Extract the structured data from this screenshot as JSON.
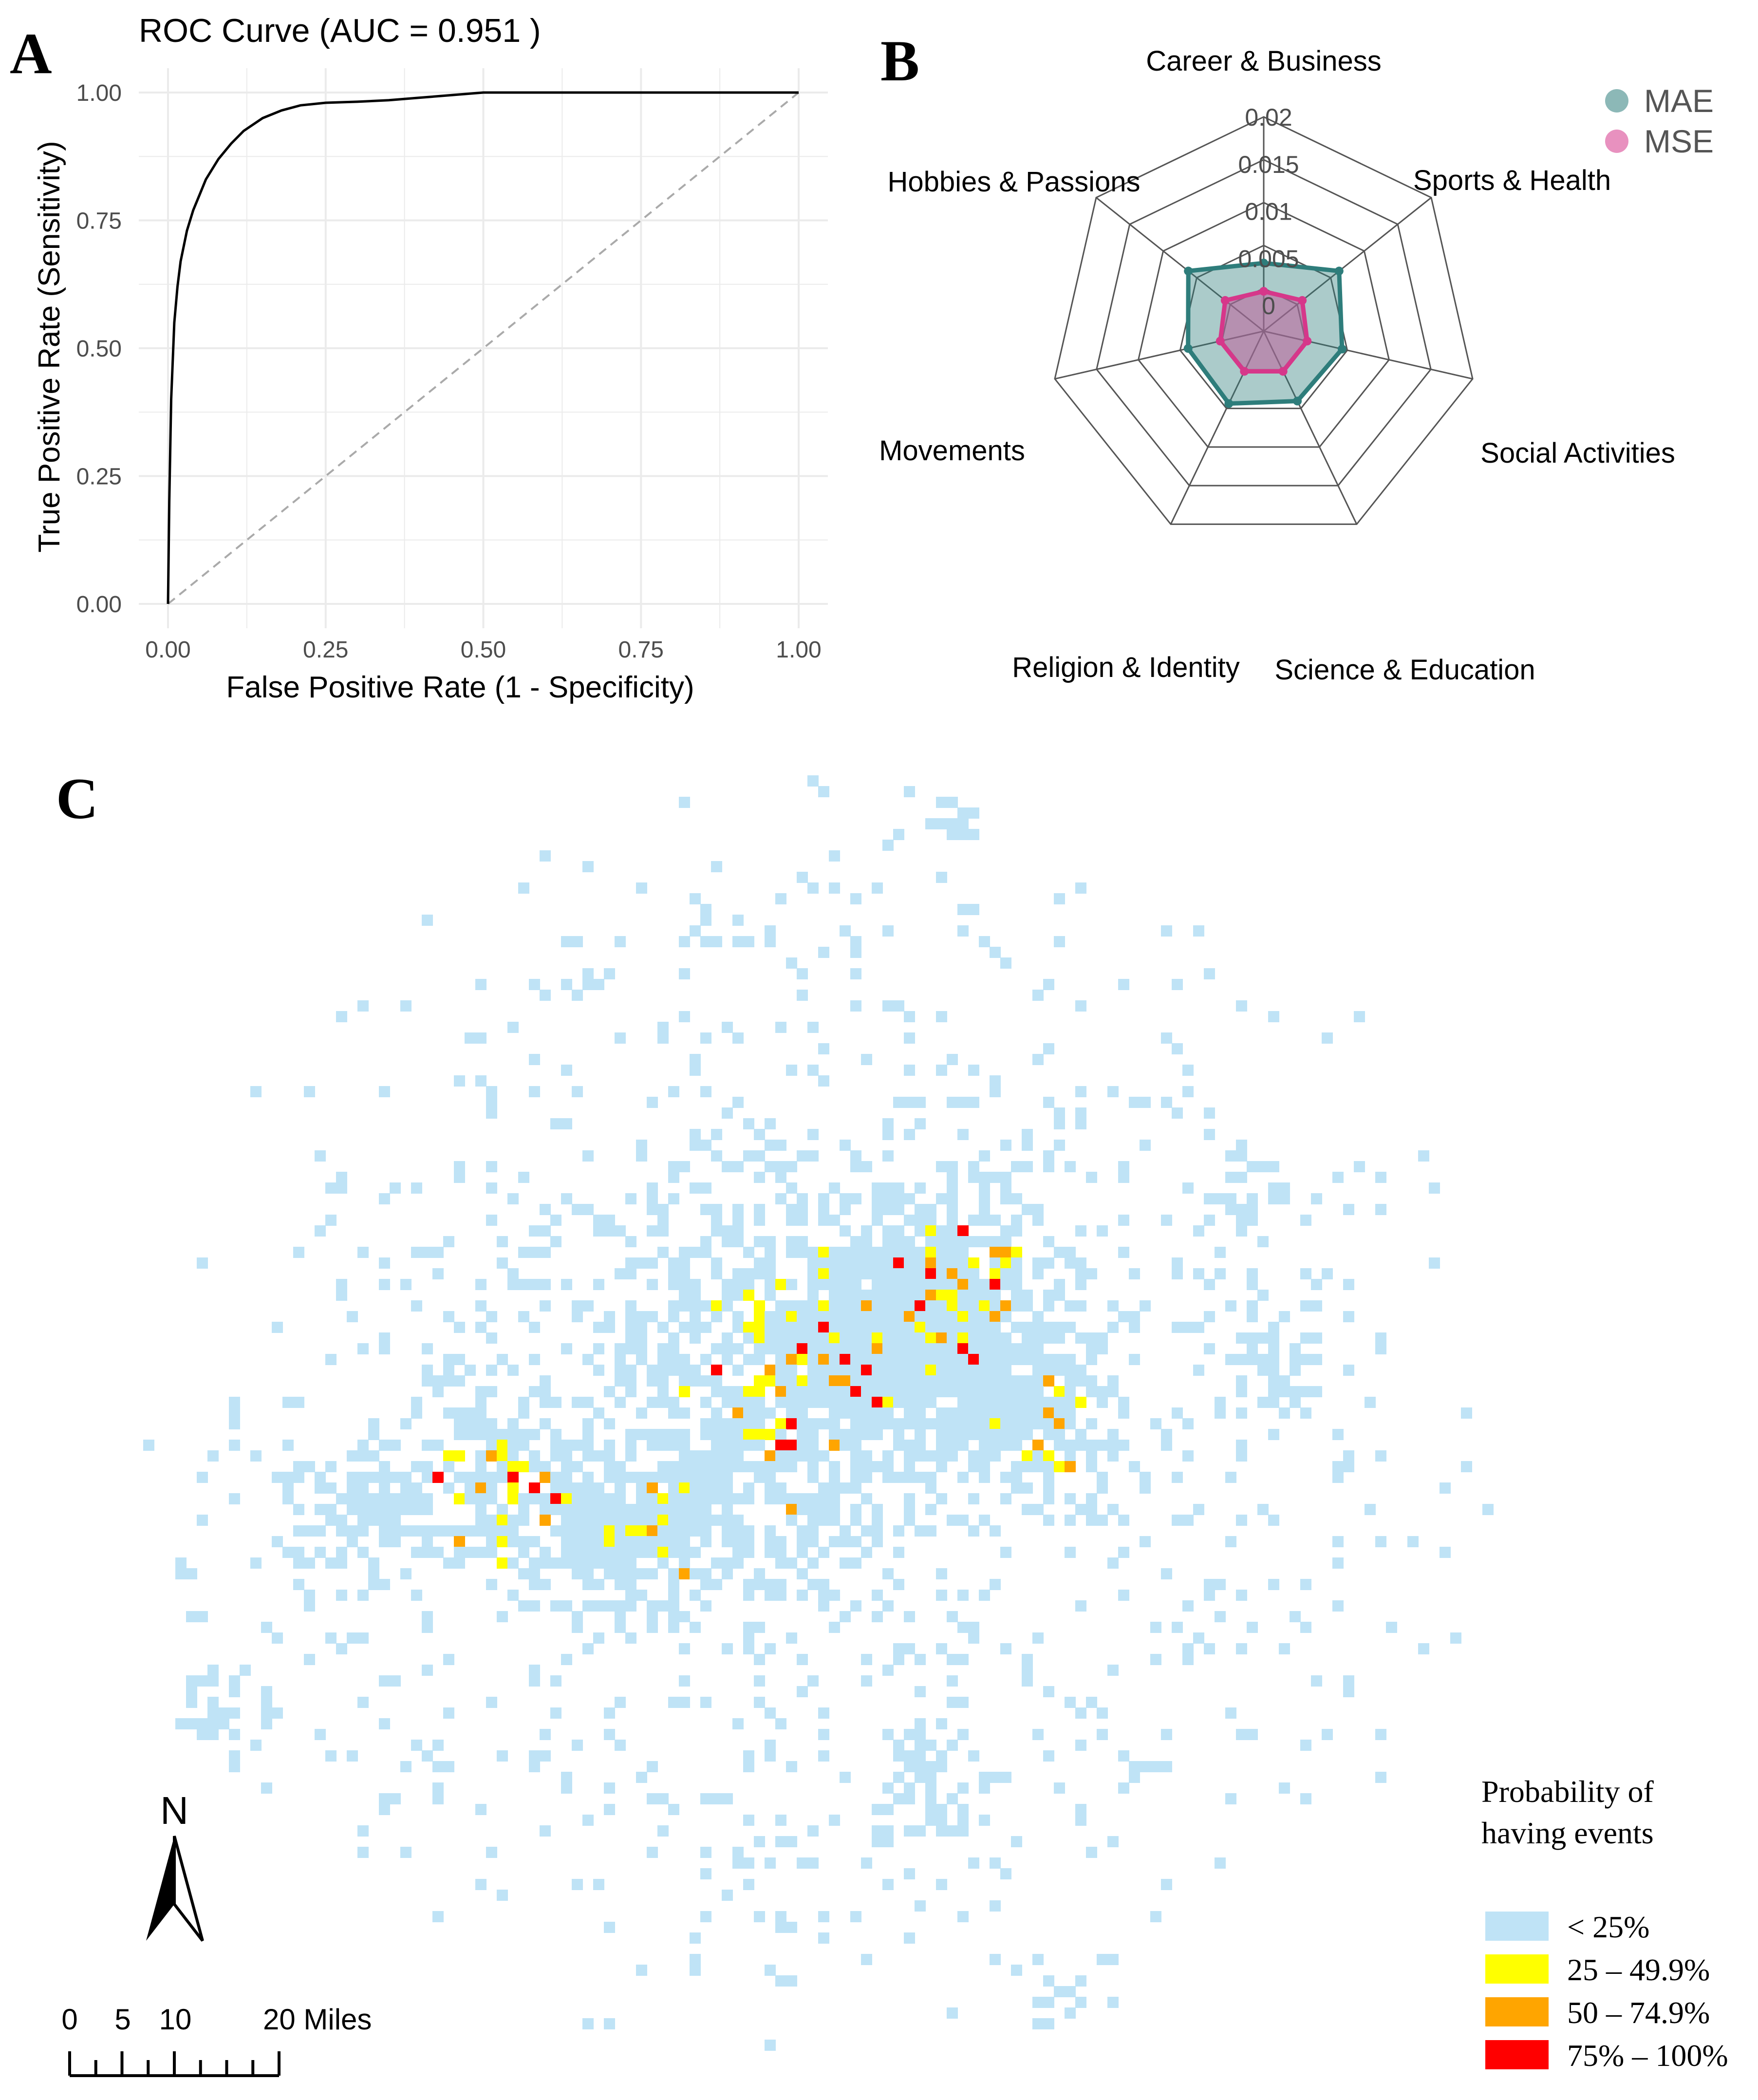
{
  "panels": {
    "a": "A",
    "b": "B",
    "c": "C"
  },
  "colors": {
    "roc_line": "#000000",
    "diag": "#aaaaaa",
    "grid": "#e6e6e6",
    "mae": "#2e7d7b",
    "mae_fill": "#6aa6a4",
    "mse": "#d6378a",
    "mse_fill": "#b9689a",
    "light_blue": "#bfe3f6",
    "yellow": "#ffff00",
    "orange": "#ffa500",
    "red": "#ff0000"
  },
  "chart_data": [
    {
      "id": "roc",
      "type": "line",
      "title": "ROC Curve (AUC =  0.951 )",
      "xlabel": "False Positive Rate (1 - Specificity)",
      "ylabel": "True Positive Rate (Sensitivity)",
      "xlim": [
        0,
        1
      ],
      "ylim": [
        0,
        1
      ],
      "x_ticks": [
        "0.00",
        "0.25",
        "0.50",
        "0.75",
        "1.00"
      ],
      "y_ticks": [
        "0.00",
        "0.25",
        "0.50",
        "0.75",
        "1.00"
      ],
      "series": [
        {
          "name": "ROC",
          "x": [
            0,
            0.002,
            0.005,
            0.01,
            0.015,
            0.02,
            0.03,
            0.04,
            0.05,
            0.06,
            0.08,
            0.1,
            0.12,
            0.15,
            0.18,
            0.21,
            0.25,
            0.3,
            0.35,
            0.4,
            0.45,
            0.5,
            0.55,
            0.6,
            0.7,
            0.8,
            0.9,
            1.0
          ],
          "y": [
            0,
            0.2,
            0.4,
            0.55,
            0.62,
            0.67,
            0.73,
            0.77,
            0.8,
            0.83,
            0.87,
            0.9,
            0.925,
            0.95,
            0.965,
            0.975,
            0.98,
            0.982,
            0.985,
            0.99,
            0.995,
            1.0,
            1.0,
            1.0,
            1.0,
            1.0,
            1.0,
            1.0
          ]
        },
        {
          "name": "Reference",
          "x": [
            0,
            1
          ],
          "y": [
            0,
            1
          ]
        }
      ]
    },
    {
      "id": "radar",
      "type": "radar",
      "categories": [
        "Career & Business",
        "Sports & Health",
        "Social Activities",
        "Science & Education",
        "Religion & Identity",
        "Movements",
        "Hobbies & Passions"
      ],
      "r_ticks": [
        "0",
        "0.005",
        "0.01",
        "0.015",
        "0.02"
      ],
      "rlim": [
        0,
        0.02
      ],
      "series": [
        {
          "name": "MAE",
          "values": [
            0.0045,
            0.0075,
            0.0058,
            0.0055,
            0.0058,
            0.0055,
            0.0075
          ]
        },
        {
          "name": "MSE",
          "values": [
            0.0015,
            0.0025,
            0.002,
            0.002,
            0.002,
            0.002,
            0.0025
          ]
        }
      ],
      "legend": [
        "MAE",
        "MSE"
      ]
    },
    {
      "id": "map",
      "type": "heatmap",
      "legend_title_line1": "Probability of",
      "legend_title_line2": "having events",
      "classes": [
        "< 25%",
        "25 – 49.9%",
        "50 – 74.9%",
        "75% – 100%"
      ],
      "north": "N",
      "scale_labels": [
        "0",
        "5",
        "10",
        "20 Miles"
      ]
    }
  ]
}
